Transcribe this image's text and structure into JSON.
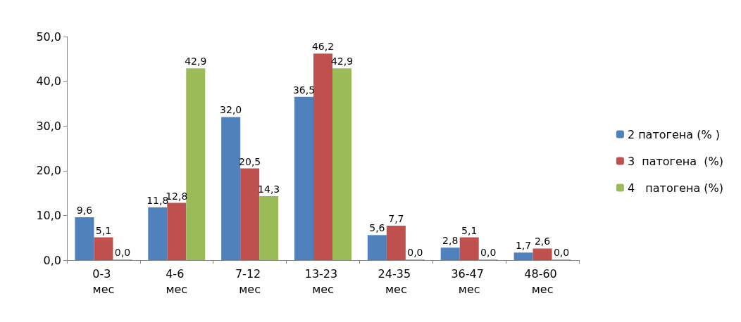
{
  "chart_data": {
    "type": "bar",
    "categories": [
      "0-3 мес",
      "4-6 мес",
      "7-12 мес",
      "13-23 мес",
      "24-35 мес",
      "36-47 мес",
      "48-60 мес"
    ],
    "series": [
      {
        "name": "2 патогена (% )",
        "color": "#4f81bd",
        "values": [
          9.6,
          11.8,
          32.0,
          36.5,
          5.6,
          2.8,
          1.7
        ],
        "value_labels": [
          "9,6",
          "11,8",
          "32,0",
          "36,5",
          "5,6",
          "2,8",
          "1,7"
        ]
      },
      {
        "name": "3  патогена  (%)",
        "color": "#c0504d",
        "values": [
          5.1,
          12.8,
          20.5,
          46.2,
          7.7,
          5.1,
          2.6
        ],
        "value_labels": [
          "5,1",
          "12,8",
          "20,5",
          "46,2",
          "7,7",
          "5,1",
          "2,6"
        ]
      },
      {
        "name": "4   патогена (%)",
        "color": "#9bbb59",
        "values": [
          0.0,
          42.9,
          14.3,
          42.9,
          0.0,
          0.0,
          0.0
        ],
        "value_labels": [
          "0,0",
          "42,9",
          "14,3",
          "42,9",
          "0,0",
          "0,0",
          "0,0"
        ]
      }
    ],
    "ylim": [
      0,
      50
    ],
    "yticks": [
      {
        "value": 0,
        "label": "0,0"
      },
      {
        "value": 10,
        "label": "10,0"
      },
      {
        "value": 20,
        "label": "20,0"
      },
      {
        "value": 30,
        "label": "30,0"
      },
      {
        "value": 40,
        "label": "40,0"
      },
      {
        "value": 50,
        "label": "50,0"
      }
    ],
    "grid": false,
    "legend": "right"
  }
}
